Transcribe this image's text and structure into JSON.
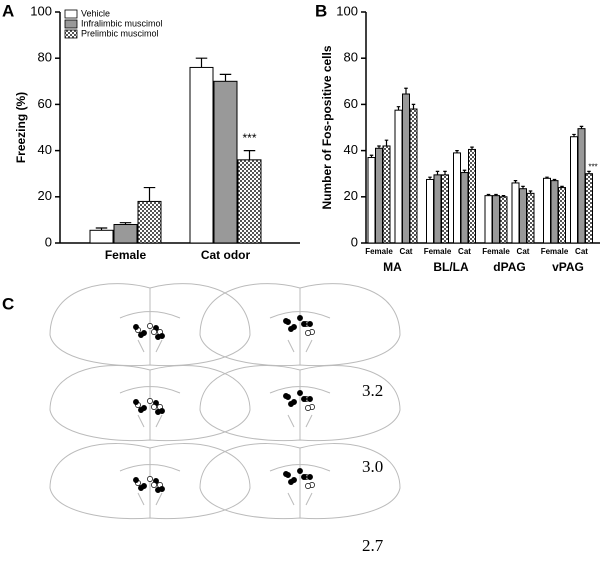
{
  "chart_data": [
    {
      "type": "bar",
      "panel_label": "A",
      "ylabel": "Freezing (%)",
      "categories": [
        "Female",
        "Cat odor"
      ],
      "series": [
        {
          "name": "Vehicle",
          "color": "#ffffff",
          "values": [
            5.5,
            76
          ],
          "errors": [
            1,
            4
          ]
        },
        {
          "name": "Infralimbic muscimol",
          "color": "#999999",
          "values": [
            8,
            70
          ],
          "errors": [
            0.8,
            3
          ]
        },
        {
          "name": "Prelimbic muscimol",
          "color": "#555555",
          "pattern": "checker",
          "values": [
            18,
            36
          ],
          "errors": [
            6,
            4
          ]
        }
      ],
      "annotation": "***",
      "ylim": [
        0,
        100
      ],
      "yticks": [
        0,
        20,
        40,
        60,
        80,
        100
      ],
      "legend": "upper left"
    },
    {
      "type": "bar",
      "panel_label": "B",
      "ylabel": "Number of Fos-positive cells",
      "categories": [
        "Female",
        "Cat",
        "Female",
        "Cat",
        "Female",
        "Cat",
        "Female",
        "Cat"
      ],
      "groups": [
        "MA",
        "BL/LA",
        "dPAG",
        "vPAG"
      ],
      "series": [
        {
          "name": "Vehicle",
          "color": "#ffffff",
          "values": [
            37,
            57.5,
            27.5,
            39,
            20.5,
            26,
            28,
            46
          ],
          "errors": [
            1,
            1.5,
            1,
            1,
            0.5,
            1,
            0.5,
            1
          ]
        },
        {
          "name": "Infralimbic muscimol",
          "color": "#999999",
          "values": [
            41,
            64.5,
            29.5,
            30.5,
            20.5,
            23.5,
            27,
            49.5
          ],
          "errors": [
            1,
            2.5,
            1.5,
            1,
            0.5,
            1,
            0.5,
            1
          ]
        },
        {
          "name": "Prelimbic muscimol",
          "color": "#555555",
          "pattern": "checker",
          "values": [
            42,
            58,
            29.5,
            40.5,
            20,
            21.5,
            24,
            30
          ],
          "errors": [
            2.5,
            2,
            1.5,
            1,
            0.5,
            1,
            0.5,
            1
          ]
        }
      ],
      "annotation": "***",
      "ylim": [
        0,
        100
      ],
      "yticks": [
        0,
        20,
        40,
        60,
        80,
        100
      ]
    }
  ],
  "panel_c": {
    "label": "C",
    "levels": [
      "3.2",
      "3.0",
      "2.7"
    ]
  }
}
